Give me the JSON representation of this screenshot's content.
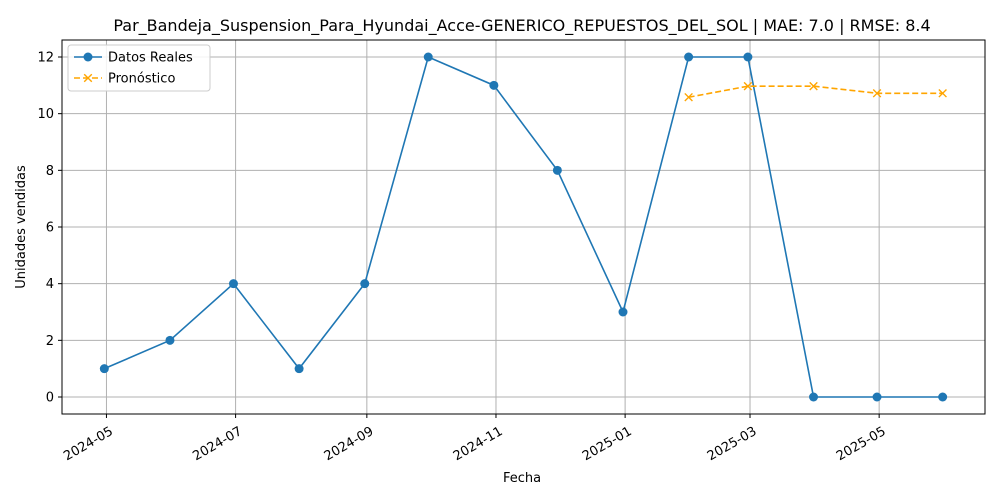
{
  "chart_data": {
    "type": "line",
    "title": "Par_Bandeja_Suspension_Para_Hyundai_Acce-GENERICO_REPUESTOS_DEL_SOL | MAE: 7.0 | RMSE: 8.4",
    "xlabel": "Fecha",
    "ylabel": "Unidades vendidas",
    "xlim": [
      "2024-04-10",
      "2025-06-20"
    ],
    "ylim": [
      -0.6,
      12.6
    ],
    "grid": true,
    "legend_position": "upper-left",
    "x_ticks": [
      {
        "date": "2024-05-01",
        "label": "2024-05"
      },
      {
        "date": "2024-07-01",
        "label": "2024-07"
      },
      {
        "date": "2024-09-01",
        "label": "2024-09"
      },
      {
        "date": "2024-11-01",
        "label": "2024-11"
      },
      {
        "date": "2025-01-01",
        "label": "2025-01"
      },
      {
        "date": "2025-03-01",
        "label": "2025-03"
      },
      {
        "date": "2025-05-01",
        "label": "2025-05"
      }
    ],
    "y_ticks": [
      0,
      2,
      4,
      6,
      8,
      10,
      12
    ],
    "series": [
      {
        "name": "Datos Reales",
        "color": "#1f77b4",
        "line_style": "solid",
        "marker": "circle",
        "points": [
          {
            "x": "2024-04-30",
            "y": 1
          },
          {
            "x": "2024-05-31",
            "y": 2
          },
          {
            "x": "2024-06-30",
            "y": 4
          },
          {
            "x": "2024-07-31",
            "y": 1
          },
          {
            "x": "2024-08-31",
            "y": 4
          },
          {
            "x": "2024-09-30",
            "y": 12
          },
          {
            "x": "2024-10-31",
            "y": 11
          },
          {
            "x": "2024-11-30",
            "y": 8
          },
          {
            "x": "2024-12-31",
            "y": 3
          },
          {
            "x": "2025-01-31",
            "y": 12
          },
          {
            "x": "2025-02-28",
            "y": 12
          },
          {
            "x": "2025-03-31",
            "y": 0
          },
          {
            "x": "2025-04-30",
            "y": 0
          },
          {
            "x": "2025-05-31",
            "y": 0
          }
        ]
      },
      {
        "name": "Pronóstico",
        "color": "#ffa500",
        "line_style": "dashed",
        "marker": "x",
        "points": [
          {
            "x": "2025-01-31",
            "y": 10.58
          },
          {
            "x": "2025-02-28",
            "y": 10.97
          },
          {
            "x": "2025-03-31",
            "y": 10.97
          },
          {
            "x": "2025-04-30",
            "y": 10.72
          },
          {
            "x": "2025-05-31",
            "y": 10.72
          }
        ]
      }
    ]
  }
}
